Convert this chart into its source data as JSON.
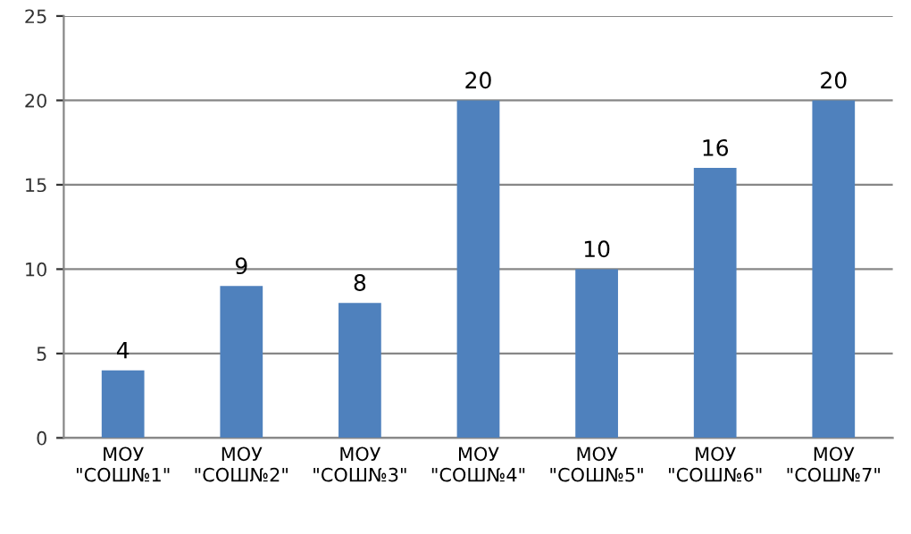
{
  "chart_data": {
    "type": "bar",
    "categories": [
      "МОУ\n\"СОШ№1\"",
      "МОУ\n\"СОШ№2\"",
      "МОУ\n\"СОШ№3\"",
      "МОУ\n\"СОШ№4\"",
      "МОУ\n\"СОШ№5\"",
      "МОУ\n\"СОШ№6\"",
      "МОУ\n\"СОШ№7\""
    ],
    "values": [
      4,
      9,
      8,
      20,
      10,
      16,
      20
    ],
    "color": "#4f81bd",
    "ylim": [
      0,
      25
    ],
    "yticks": [
      0,
      5,
      10,
      15,
      20,
      25
    ],
    "grid": "y",
    "data_labels": true,
    "legend": false
  }
}
